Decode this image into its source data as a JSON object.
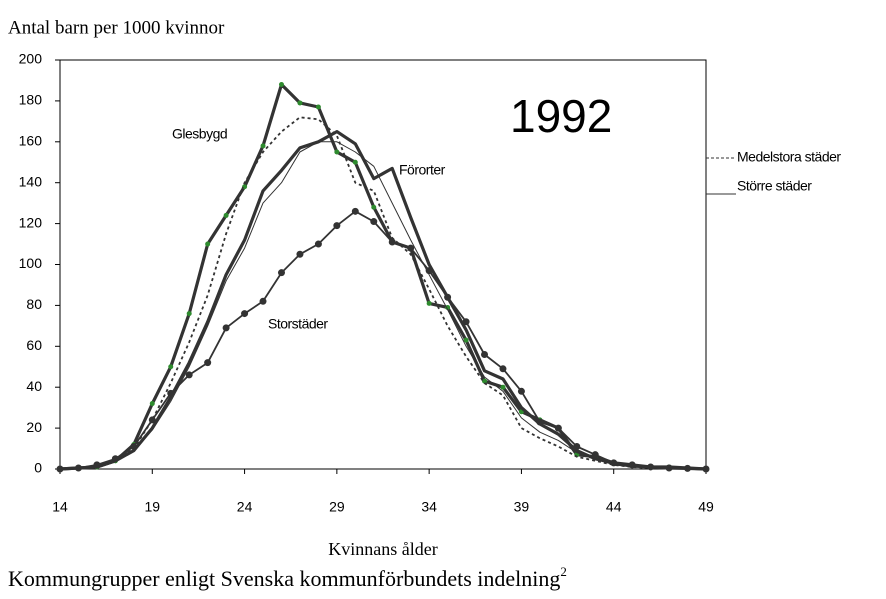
{
  "chart_data": {
    "type": "line",
    "title": "Antal barn per 1000 kvinnor",
    "annotation": "1992",
    "x_label": "Kvinnans ålder",
    "caption": "Kommungrupper enligt Svenska kommunförbundets indelning",
    "caption_note": "2",
    "x": [
      14,
      15,
      16,
      17,
      18,
      19,
      20,
      21,
      22,
      23,
      24,
      25,
      26,
      27,
      28,
      29,
      30,
      31,
      32,
      33,
      34,
      35,
      36,
      37,
      38,
      39,
      40,
      41,
      42,
      43,
      44,
      45,
      46,
      47,
      48,
      49
    ],
    "xlim": [
      14,
      49
    ],
    "xticks": [
      14,
      19,
      24,
      29,
      34,
      39,
      44,
      49
    ],
    "ylim": [
      0,
      200
    ],
    "yticks": [
      0,
      20,
      40,
      60,
      80,
      100,
      120,
      140,
      160,
      180,
      200
    ],
    "series": [
      {
        "name": "Glesbygd",
        "color": "#333333",
        "weight": "thick",
        "marker": "dot",
        "marker_color": "#2e8b2e",
        "values": [
          0,
          0.5,
          1,
          4,
          12,
          32,
          50,
          76,
          110,
          124,
          138,
          158,
          188,
          179,
          177,
          155,
          150,
          128,
          111,
          108,
          81,
          79,
          63,
          43,
          40,
          28,
          24,
          20,
          7,
          6,
          3,
          2,
          1,
          1,
          0.5,
          0
        ]
      },
      {
        "name": "Förorter",
        "color": "#333333",
        "weight": "thick",
        "values": [
          0,
          0.5,
          1,
          4,
          9,
          20,
          35,
          52,
          72,
          95,
          112,
          136,
          146,
          157,
          160,
          165,
          159,
          142,
          147,
          123,
          100,
          84,
          68,
          48,
          44,
          30,
          22,
          17,
          9,
          5,
          3,
          1.5,
          1,
          0.5,
          0.3,
          0
        ]
      },
      {
        "name": "Storstäder",
        "color": "#333333",
        "weight": "medium",
        "marker": "dot",
        "marker_color": "#333333",
        "values": [
          0,
          0.5,
          2,
          5,
          11,
          24,
          37,
          46,
          52,
          69,
          76,
          82,
          96,
          105,
          110,
          119,
          126,
          121,
          111,
          108,
          97,
          84,
          72,
          56,
          49,
          38,
          23,
          20,
          11,
          7,
          3,
          2,
          1,
          0.5,
          0.3,
          0
        ]
      },
      {
        "name": "Medelstora städer",
        "color": "#333333",
        "weight": "medium",
        "dashed": true,
        "values": [
          0,
          0.5,
          1,
          4,
          10,
          24,
          42,
          62,
          85,
          115,
          140,
          155,
          165,
          172,
          171,
          163,
          140,
          136,
          113,
          105,
          88,
          70,
          55,
          42,
          36,
          20,
          15,
          11,
          6,
          4,
          2,
          1,
          0.5,
          0.3,
          0.2,
          0
        ]
      },
      {
        "name": "Större städer",
        "color": "#333333",
        "weight": "thin",
        "values": [
          0,
          0.5,
          1,
          4,
          9,
          19,
          33,
          50,
          70,
          92,
          108,
          130,
          140,
          155,
          160,
          160,
          155,
          148,
          130,
          112,
          95,
          78,
          60,
          45,
          38,
          25,
          18,
          14,
          8,
          5,
          2,
          1,
          0.5,
          0.3,
          0.2,
          0
        ]
      }
    ]
  }
}
